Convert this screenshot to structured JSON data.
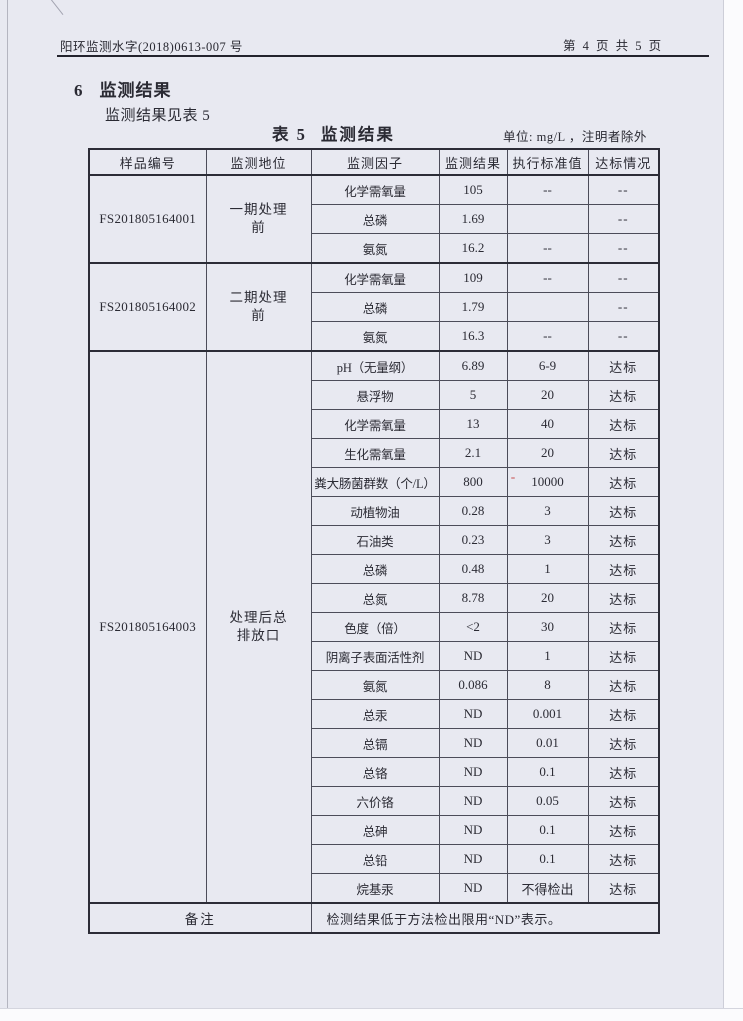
{
  "page": {
    "doc_number": "阳环监测水字(2018)0613-007 号",
    "page_indicator": "第 4 页  共 5 页",
    "section_number": "6",
    "section_title": "监测结果",
    "intro": "监测结果见表 5",
    "table_label": "表 5",
    "table_title": "监测结果",
    "unit_note": "单位: mg/L ，注明者除外"
  },
  "table": {
    "headers": [
      "样品编号",
      "监测地位",
      "监测因子",
      "监测结果",
      "执行标准值",
      "达标情况"
    ],
    "groups": [
      {
        "sample_id": "FS201805164001",
        "location": "一期处理前",
        "rows": [
          {
            "factor": "化学需氧量",
            "result": "105",
            "standard": "--",
            "status": "--"
          },
          {
            "factor": "总磷",
            "result": "1.69",
            "standard": "",
            "status": "--"
          },
          {
            "factor": "氨氮",
            "result": "16.2",
            "standard": "--",
            "status": "--"
          }
        ]
      },
      {
        "sample_id": "FS201805164002",
        "location": "二期处理前",
        "rows": [
          {
            "factor": "化学需氧量",
            "result": "109",
            "standard": "--",
            "status": "--"
          },
          {
            "factor": "总磷",
            "result": "1.79",
            "standard": "",
            "status": "--"
          },
          {
            "factor": "氨氮",
            "result": "16.3",
            "standard": "--",
            "status": "--"
          }
        ]
      },
      {
        "sample_id": "FS201805164003",
        "location": "处理后总排放口",
        "rows": [
          {
            "factor": "pH（无量纲）",
            "result": "6.89",
            "standard": "6-9",
            "status": "达标"
          },
          {
            "factor": "悬浮物",
            "result": "5",
            "standard": "20",
            "status": "达标"
          },
          {
            "factor": "化学需氧量",
            "result": "13",
            "standard": "40",
            "status": "达标"
          },
          {
            "factor": "生化需氧量",
            "result": "2.1",
            "standard": "20",
            "status": "达标"
          },
          {
            "factor": "粪大肠菌群数（个/L）",
            "result": "800",
            "standard": "10000",
            "status": "达标"
          },
          {
            "factor": "动植物油",
            "result": "0.28",
            "standard": "3",
            "status": "达标"
          },
          {
            "factor": "石油类",
            "result": "0.23",
            "standard": "3",
            "status": "达标"
          },
          {
            "factor": "总磷",
            "result": "0.48",
            "standard": "1",
            "status": "达标"
          },
          {
            "factor": "总氮",
            "result": "8.78",
            "standard": "20",
            "status": "达标"
          },
          {
            "factor": "色度（倍）",
            "result": "<2",
            "standard": "30",
            "status": "达标"
          },
          {
            "factor": "阴离子表面活性剂",
            "result": "ND",
            "standard": "1",
            "status": "达标"
          },
          {
            "factor": "氨氮",
            "result": "0.086",
            "standard": "8",
            "status": "达标"
          },
          {
            "factor": "总汞",
            "result": "ND",
            "standard": "0.001",
            "status": "达标"
          },
          {
            "factor": "总镉",
            "result": "ND",
            "standard": "0.01",
            "status": "达标"
          },
          {
            "factor": "总铬",
            "result": "ND",
            "standard": "0.1",
            "status": "达标"
          },
          {
            "factor": "六价铬",
            "result": "ND",
            "standard": "0.05",
            "status": "达标"
          },
          {
            "factor": "总砷",
            "result": "ND",
            "standard": "0.1",
            "status": "达标"
          },
          {
            "factor": "总铅",
            "result": "ND",
            "standard": "0.1",
            "status": "达标"
          },
          {
            "factor": "烷基汞",
            "result": "ND",
            "standard": "不得检出",
            "status": "达标"
          }
        ]
      }
    ],
    "remark_label": "备注",
    "remark_text": "检测结果低于方法检出限用“ND”表示。"
  },
  "colors": {
    "paper": "#e8e9f1",
    "ink": "#2a2a33",
    "table_line": "#4c4c59",
    "table_line_heavy": "#2c2c37"
  }
}
